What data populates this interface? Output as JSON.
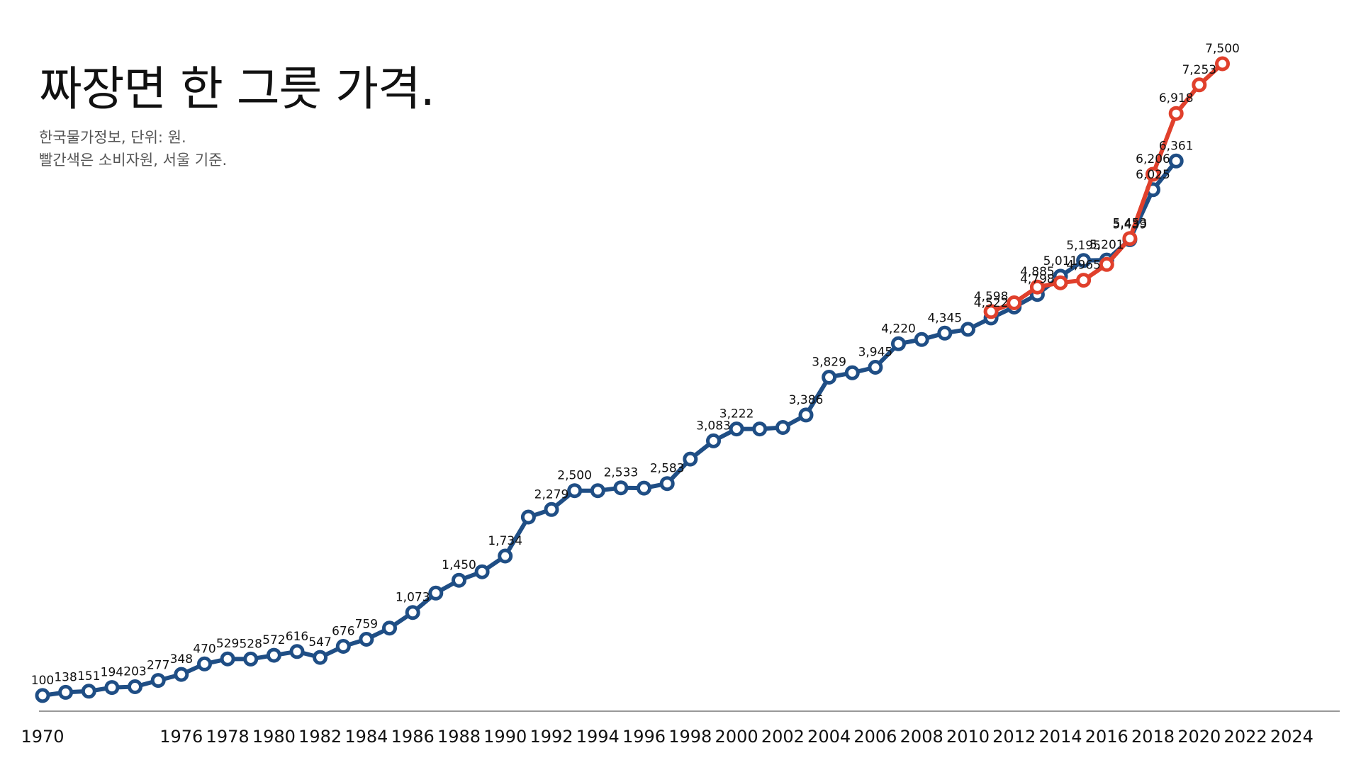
{
  "title": "짜장면 한 그릇 가격.",
  "subtitle_lines": [
    "한국물가정보, 단위: 원.",
    "빨간색은 소비자원, 서울 기준."
  ],
  "colors": {
    "series_blue": "#1f4e85",
    "series_red": "#e0402c",
    "axis": "#777777"
  },
  "chart_data": {
    "type": "line",
    "xlim": [
      1970,
      2025
    ],
    "ylim": [
      0,
      7500
    ],
    "grid": false,
    "legend": "none",
    "x_ticks": [
      1970,
      1976,
      1978,
      1980,
      1982,
      1984,
      1986,
      1988,
      1990,
      1992,
      1994,
      1996,
      1998,
      2000,
      2002,
      2004,
      2006,
      2008,
      2010,
      2012,
      2014,
      2016,
      2018,
      2020,
      2022,
      2024
    ],
    "series": [
      {
        "color": "#1f4e85",
        "points": [
          {
            "x": 1970,
            "y": 100,
            "label": "100"
          },
          {
            "x": 1971,
            "y": 138,
            "label": "138"
          },
          {
            "x": 1972,
            "y": 151,
            "label": "151"
          },
          {
            "x": 1973,
            "y": 194,
            "label": "194"
          },
          {
            "x": 1974,
            "y": 203,
            "label": "203"
          },
          {
            "x": 1975,
            "y": 277,
            "label": "277"
          },
          {
            "x": 1976,
            "y": 348,
            "label": "348"
          },
          {
            "x": 1977,
            "y": 470,
            "label": "470"
          },
          {
            "x": 1978,
            "y": 529,
            "label": "529"
          },
          {
            "x": 1979,
            "y": 528,
            "label": "528"
          },
          {
            "x": 1980,
            "y": 572,
            "label": "572"
          },
          {
            "x": 1981,
            "y": 616,
            "label": "616"
          },
          {
            "x": 1982,
            "y": 547,
            "label": "547"
          },
          {
            "x": 1983,
            "y": 676,
            "label": "676"
          },
          {
            "x": 1984,
            "y": 759,
            "label": "759"
          },
          {
            "x": 1985,
            "y": 890,
            "label": ""
          },
          {
            "x": 1986,
            "y": 1073,
            "label": "1,073"
          },
          {
            "x": 1987,
            "y": 1300,
            "label": ""
          },
          {
            "x": 1988,
            "y": 1450,
            "label": "1,450"
          },
          {
            "x": 1989,
            "y": 1550,
            "label": ""
          },
          {
            "x": 1990,
            "y": 1734,
            "label": "1,734"
          },
          {
            "x": 1991,
            "y": 2190,
            "label": ""
          },
          {
            "x": 1992,
            "y": 2279,
            "label": "2,279"
          },
          {
            "x": 1993,
            "y": 2500,
            "label": "2,500"
          },
          {
            "x": 1994,
            "y": 2500,
            "label": ""
          },
          {
            "x": 1995,
            "y": 2533,
            "label": "2,533"
          },
          {
            "x": 1996,
            "y": 2530,
            "label": ""
          },
          {
            "x": 1997,
            "y": 2583,
            "label": "2,583"
          },
          {
            "x": 1998,
            "y": 2870,
            "label": ""
          },
          {
            "x": 1999,
            "y": 3083,
            "label": "3,083"
          },
          {
            "x": 2000,
            "y": 3222,
            "label": "3,222"
          },
          {
            "x": 2001,
            "y": 3222,
            "label": ""
          },
          {
            "x": 2002,
            "y": 3240,
            "label": ""
          },
          {
            "x": 2003,
            "y": 3386,
            "label": "3,386"
          },
          {
            "x": 2004,
            "y": 3829,
            "label": "3,829"
          },
          {
            "x": 2005,
            "y": 3880,
            "label": ""
          },
          {
            "x": 2006,
            "y": 3945,
            "label": "3,945"
          },
          {
            "x": 2007,
            "y": 4220,
            "label": "4,220"
          },
          {
            "x": 2008,
            "y": 4270,
            "label": ""
          },
          {
            "x": 2009,
            "y": 4345,
            "label": "4,345"
          },
          {
            "x": 2010,
            "y": 4390,
            "label": ""
          },
          {
            "x": 2011,
            "y": 4522,
            "label": "4,522"
          },
          {
            "x": 2012,
            "y": 4650,
            "label": ""
          },
          {
            "x": 2013,
            "y": 4798,
            "label": "4,798"
          },
          {
            "x": 2014,
            "y": 5011,
            "label": "5,011"
          },
          {
            "x": 2015,
            "y": 5195,
            "label": "5,195"
          },
          {
            "x": 2016,
            "y": 5201,
            "label": "5,201"
          },
          {
            "x": 2017,
            "y": 5439,
            "label": "5,439"
          },
          {
            "x": 2018,
            "y": 6025,
            "label": "6,025"
          },
          {
            "x": 2019,
            "y": 6361,
            "label": "6,361"
          }
        ]
      },
      {
        "color": "#e0402c",
        "points": [
          {
            "x": 2011,
            "y": 4598,
            "label": "4,598"
          },
          {
            "x": 2012,
            "y": 4700,
            "label": ""
          },
          {
            "x": 2013,
            "y": 4885,
            "label": "4,885"
          },
          {
            "x": 2014,
            "y": 4935,
            "label": ""
          },
          {
            "x": 2015,
            "y": 4965,
            "label": "4,965"
          },
          {
            "x": 2016,
            "y": 5150,
            "label": ""
          },
          {
            "x": 2017,
            "y": 5453,
            "label": "5,453"
          },
          {
            "x": 2018,
            "y": 6206,
            "label": "6,206"
          },
          {
            "x": 2019,
            "y": 6918,
            "label": "6,918"
          },
          {
            "x": 2020,
            "y": 7253,
            "label": "7,253"
          },
          {
            "x": 2021,
            "y": 7500,
            "label": "7,500"
          }
        ]
      }
    ]
  }
}
